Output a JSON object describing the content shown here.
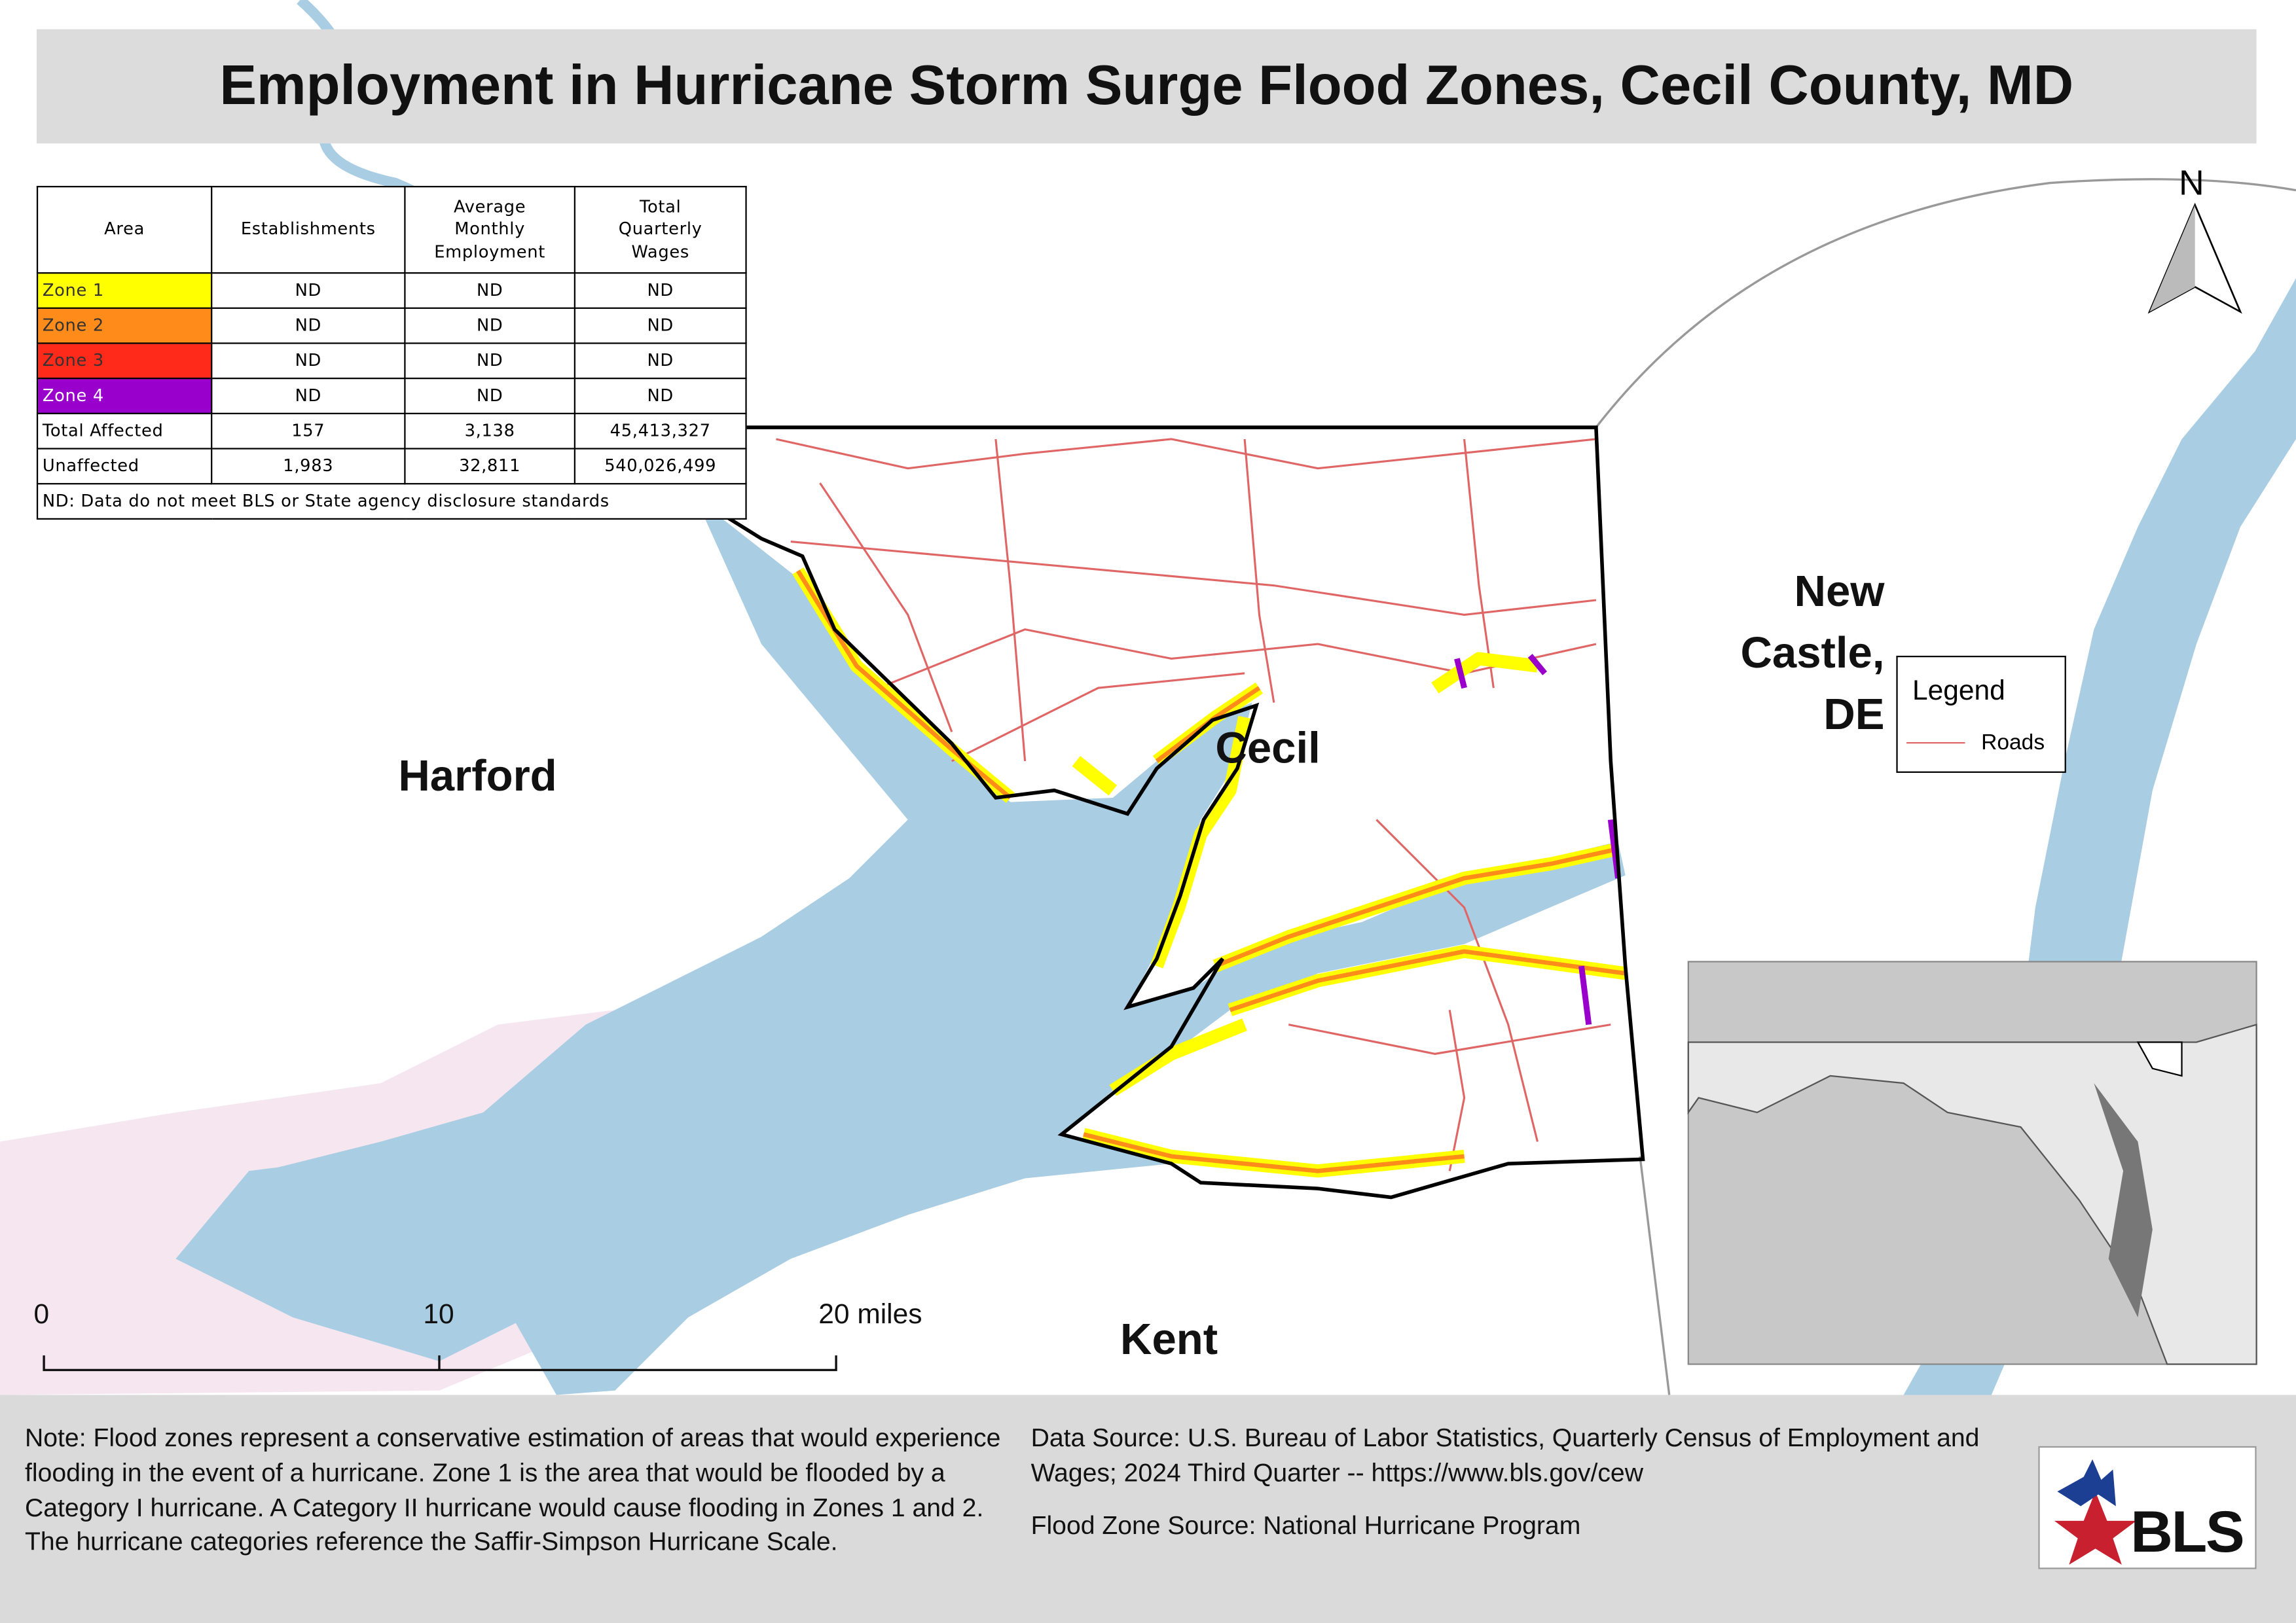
{
  "header": {
    "title": "Employment in Hurricane Storm Surge Flood Zones, Cecil County, MD"
  },
  "table": {
    "headers": [
      "Area",
      "Establishments",
      "Average Monthly Employment",
      "Total Quarterly Wages"
    ],
    "rows": [
      [
        "Zone 1",
        "ND",
        "ND",
        "ND"
      ],
      [
        "Zone 2",
        "ND",
        "ND",
        "ND"
      ],
      [
        "Zone 3",
        "ND",
        "ND",
        "ND"
      ],
      [
        "Zone 4",
        "ND",
        "ND",
        "ND"
      ],
      [
        "Total Affected",
        "157",
        "3,138",
        "45,413,327"
      ],
      [
        "Unaffected",
        "1,983",
        "32,811",
        "540,026,499"
      ]
    ],
    "footnote": "ND: Data do not meet BLS or State agency disclosure standards"
  },
  "map_labels": {
    "harford": "Harford",
    "cecil": "Cecil",
    "new_castle": "New Castle, DE",
    "kent": "Kent"
  },
  "north_arrow": "N",
  "legend": {
    "title": "Legend",
    "items": [
      "Roads"
    ]
  },
  "scale_bar": [
    "0",
    "10",
    "20 miles"
  ],
  "notes": {
    "note": "Note: Flood zones represent a conservative estimation of areas that would experience flooding in the event of a hurricane. Zone 1 is the area that would be flooded by a Category I hurricane. A Category II hurricane would cause flooding in Zones 1 and 2. The hurricane categories reference the Saffir-Simpson Hurricane Scale.",
    "data_source": "Data Source: U.S. Bureau of Labor Statistics, Quarterly Census of Employment and Wages; 2024 Third Quarter -- https://www.bls.gov/cew",
    "flood_zone_source": "Flood Zone Source: National Hurricane Program"
  },
  "logo": "BLS"
}
